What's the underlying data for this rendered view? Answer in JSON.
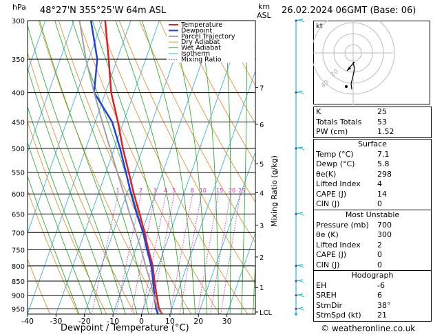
{
  "header": {
    "location": "48°27'N  355°25'W  64m  ASL",
    "datetime": "26.02.2024  06GMT  (Base: 06)",
    "hpa_unit": "hPa",
    "km_unit": "km",
    "asl_unit": "ASL"
  },
  "chart_data": {
    "type": "line",
    "xlabel": "Dewpoint / Temperature (°C)",
    "ylabel": "",
    "right_axis_label": "Mixing Ratio (g/kg)",
    "xlim": [
      -40,
      40
    ],
    "x_ticks": [
      -40,
      -30,
      -20,
      -10,
      0,
      10,
      20,
      30
    ],
    "pressure_ticks": [
      300,
      350,
      400,
      450,
      500,
      550,
      600,
      650,
      700,
      750,
      800,
      850,
      900,
      950
    ],
    "km_ticks": [
      {
        "label": "7",
        "p": 392
      },
      {
        "label": "6",
        "p": 454
      },
      {
        "label": "5",
        "p": 532
      },
      {
        "label": "4",
        "p": 597
      },
      {
        "label": "3",
        "p": 680
      },
      {
        "label": "2",
        "p": 772
      },
      {
        "label": "1",
        "p": 872
      },
      {
        "label": "LCL",
        "p": 962
      }
    ],
    "mixing_ratio_labels": [
      "1",
      "2",
      "3",
      "4",
      "5",
      "8",
      "10",
      "15",
      "20",
      "25"
    ],
    "mixing_ratio_values": [
      1,
      2,
      3,
      4,
      5,
      8,
      10,
      15,
      20,
      25
    ],
    "legend": [
      "Temperature",
      "Dewpoint",
      "Parcel Trajectory",
      "Dry Adiabat",
      "Wet Adiabat",
      "Isotherm",
      "Mixing Ratio"
    ],
    "series": [
      {
        "name": "Temperature",
        "color": "#e02020",
        "points": [
          [
            7.1,
            970
          ],
          [
            5.5,
            950
          ],
          [
            3,
            900
          ],
          [
            0.5,
            850
          ],
          [
            -2,
            800
          ],
          [
            -5.5,
            750
          ],
          [
            -9,
            700
          ],
          [
            -13,
            650
          ],
          [
            -17.5,
            600
          ],
          [
            -22,
            550
          ],
          [
            -27,
            500
          ],
          [
            -32,
            450
          ],
          [
            -38,
            400
          ],
          [
            -43,
            350
          ],
          [
            -49,
            300
          ]
        ]
      },
      {
        "name": "Dewpoint",
        "color": "#2040e0",
        "points": [
          [
            5.8,
            970
          ],
          [
            4.5,
            950
          ],
          [
            2.2,
            900
          ],
          [
            0,
            850
          ],
          [
            -2.5,
            800
          ],
          [
            -6,
            750
          ],
          [
            -9.5,
            700
          ],
          [
            -14,
            650
          ],
          [
            -18.5,
            600
          ],
          [
            -23,
            550
          ],
          [
            -28,
            500
          ],
          [
            -34,
            450
          ],
          [
            -44,
            400
          ],
          [
            -47,
            350
          ],
          [
            -54,
            300
          ]
        ]
      },
      {
        "name": "Parcel Trajectory",
        "color": "#a0a0a0",
        "points": [
          [
            7.1,
            970
          ],
          [
            5,
            950
          ],
          [
            2,
            900
          ],
          [
            -1,
            850
          ],
          [
            -4.5,
            800
          ],
          [
            -8,
            750
          ],
          [
            -12,
            700
          ],
          [
            -16.5,
            650
          ],
          [
            -21,
            600
          ],
          [
            -26,
            550
          ],
          [
            -31.5,
            500
          ],
          [
            -37.5,
            450
          ],
          [
            -44,
            400
          ],
          [
            -51,
            350
          ],
          [
            -58,
            300
          ]
        ]
      }
    ]
  },
  "hodograph": {
    "label": "kt",
    "ring_labels": [
      "20",
      "40"
    ]
  },
  "indices": [
    {
      "k": "K",
      "v": "25"
    },
    {
      "k": "Totals Totals",
      "v": "53"
    },
    {
      "k": "PW (cm)",
      "v": "1.52"
    }
  ],
  "surface": {
    "title": "Surface",
    "rows": [
      {
        "k": "Temp (°C)",
        "v": "7.1"
      },
      {
        "k": "Dewp (°C)",
        "v": "5.8"
      },
      {
        "k": "θe(K)",
        "v": "298"
      },
      {
        "k": "Lifted Index",
        "v": "4"
      },
      {
        "k": "CAPE (J)",
        "v": "14"
      },
      {
        "k": "CIN (J)",
        "v": "0"
      }
    ]
  },
  "most_unstable": {
    "title": "Most Unstable",
    "rows": [
      {
        "k": "Pressure (mb)",
        "v": "700"
      },
      {
        "k": "θe (K)",
        "v": "300"
      },
      {
        "k": "Lifted Index",
        "v": "2"
      },
      {
        "k": "CAPE (J)",
        "v": "0"
      },
      {
        "k": "CIN (J)",
        "v": "0"
      }
    ]
  },
  "hodograph_table": {
    "title": "Hodograph",
    "rows": [
      {
        "k": "EH",
        "v": "-6"
      },
      {
        "k": "SREH",
        "v": "6"
      },
      {
        "k": "StmDir",
        "v": "38°"
      },
      {
        "k": "StmSpd (kt)",
        "v": "21"
      }
    ]
  },
  "footer": {
    "copyright": "© weatheronline.co.uk"
  }
}
